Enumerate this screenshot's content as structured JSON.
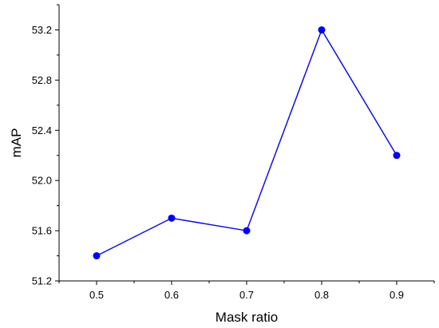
{
  "chart_data": {
    "type": "line",
    "title": "",
    "xlabel": "Mask ratio",
    "ylabel": "mAP",
    "x": [
      0.5,
      0.6,
      0.7,
      0.8,
      0.9
    ],
    "series": [
      {
        "values": [
          51.4,
          51.7,
          51.6,
          53.2,
          52.2
        ]
      }
    ],
    "xticks": [
      "0.5",
      "0.6",
      "0.7",
      "0.8",
      "0.9"
    ],
    "yticks": [
      "51.2",
      "51.6",
      "52.0",
      "52.4",
      "52.8",
      "53.2"
    ],
    "xlim": [
      0.45,
      0.95
    ],
    "ylim": [
      51.2,
      53.4
    ],
    "grid": false,
    "legend": "none",
    "colors": {
      "line": "#1010e0",
      "marker": "#0000ee",
      "axis": "#000000"
    }
  }
}
